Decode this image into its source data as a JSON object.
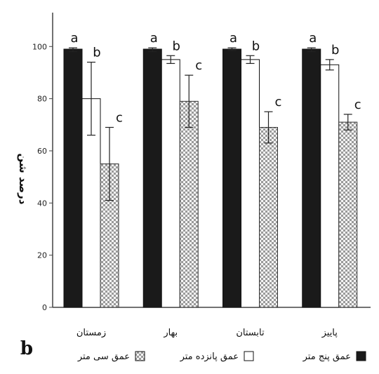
{
  "panel_letter": "b",
  "colors": {
    "series1": "#1a1a1a",
    "series2": "#ffffff",
    "series3_a": "#9a9a9a",
    "series3_b": "#f4f4f4",
    "axis": "#444444"
  },
  "chart_data": {
    "type": "bar",
    "ylabel": "درصد شن",
    "ylim": [
      0,
      100
    ],
    "yticks": [
      0,
      20,
      40,
      60,
      80,
      100
    ],
    "grid": false,
    "legend_position": "bottom",
    "categories": [
      "زمستان",
      "بهار",
      "تابستان",
      "پاییز"
    ],
    "series": [
      {
        "name": "عمق پنج متر",
        "values": [
          99,
          99,
          99,
          99
        ],
        "errors": [
          1,
          1,
          0.5,
          1
        ],
        "letters": [
          "a",
          "a",
          "a",
          "a"
        ]
      },
      {
        "name": "عمق پانزده متر",
        "values": [
          80,
          95,
          95,
          93
        ],
        "errors": [
          14,
          1.5,
          1.5,
          2
        ],
        "letters": [
          "b",
          "b",
          "b",
          "b"
        ]
      },
      {
        "name": "عمق سی متر",
        "values": [
          55,
          79,
          69,
          71
        ],
        "errors": [
          14,
          10,
          6,
          3
        ],
        "letters": [
          "c",
          "c",
          "c",
          "c"
        ]
      }
    ]
  }
}
